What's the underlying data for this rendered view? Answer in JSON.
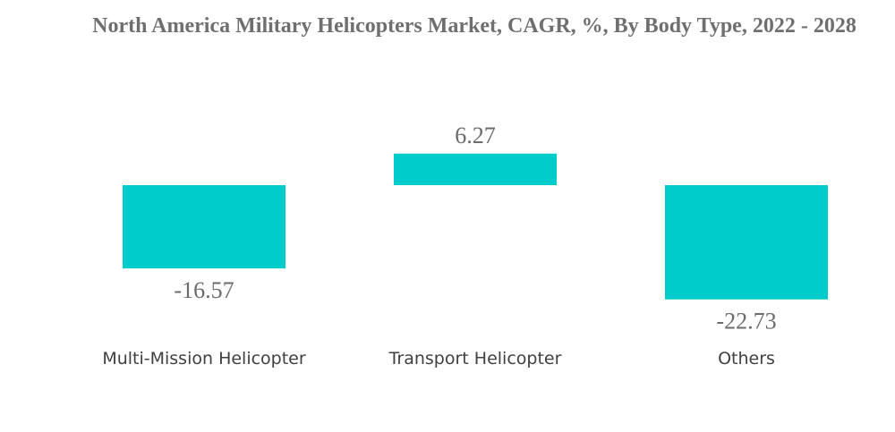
{
  "chart_data": {
    "type": "bar",
    "title": "North America Military Helicopters Market, CAGR, %, By Body Type, 2022 - 2028",
    "categories": [
      "Multi-Mission Helicopter",
      "Transport Helicopter",
      "Others"
    ],
    "values": [
      -16.57,
      6.27,
      -22.73
    ],
    "value_labels": [
      "-16.57",
      "6.27",
      "-22.73"
    ],
    "bar_color": "#00CCCC",
    "grid": false,
    "legend": "none",
    "xlabel": "",
    "ylabel": ""
  }
}
